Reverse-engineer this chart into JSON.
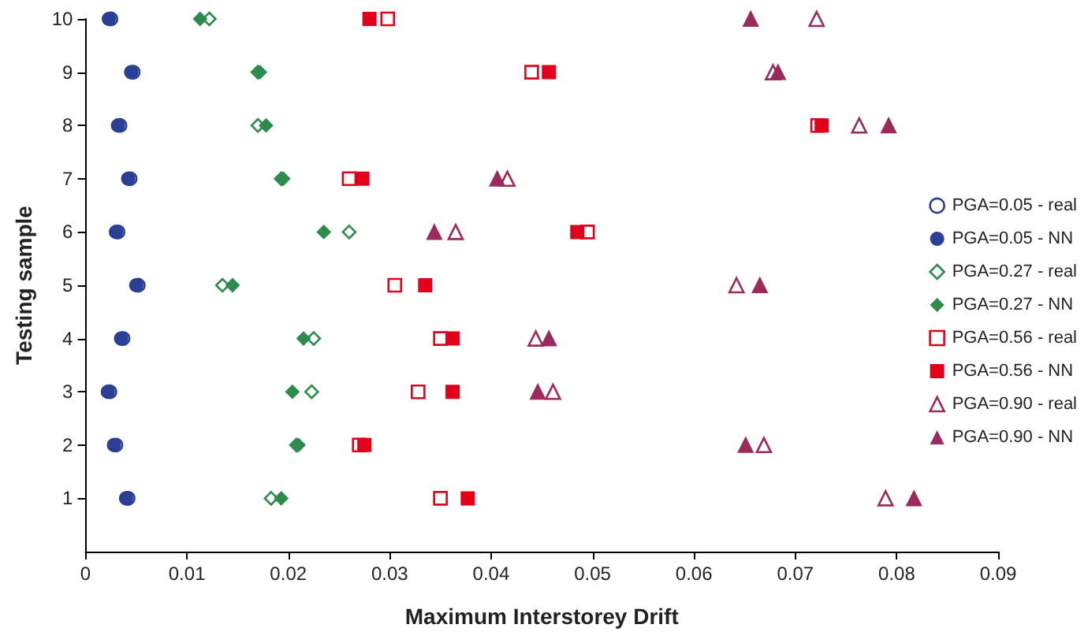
{
  "chart_data": {
    "type": "scatter",
    "xlabel": "Maximum Interstorey Drift",
    "ylabel": "Testing sample",
    "xlim": [
      0,
      0.09
    ],
    "xticks": [
      0,
      0.01,
      0.02,
      0.03,
      0.04,
      0.05,
      0.06,
      0.07,
      0.08,
      0.09
    ],
    "ylim": [
      0,
      10
    ],
    "yticks": [
      1,
      2,
      3,
      4,
      5,
      6,
      7,
      8,
      9,
      10
    ],
    "grid": false,
    "legend": "right",
    "series": [
      {
        "name": "PGA=0.05 - real",
        "color": "#2b3f94",
        "marker": "circle",
        "x": [
          0.0042,
          0.003,
          0.0024,
          0.0037,
          0.0052,
          0.0032,
          0.0044,
          0.0034,
          0.0047,
          0.0025
        ],
        "values": [
          1,
          2,
          3,
          4,
          5,
          6,
          7,
          8,
          9,
          10
        ]
      },
      {
        "name": "PGA=0.05 - NN",
        "color": "#2b3f94",
        "marker": "circle",
        "x": [
          0.004,
          0.0028,
          0.0022,
          0.0035,
          0.005,
          0.003,
          0.0042,
          0.0032,
          0.0045,
          0.0023
        ],
        "values": [
          1,
          2,
          3,
          4,
          5,
          6,
          7,
          8,
          9,
          10
        ]
      },
      {
        "name": "PGA=0.27 - real",
        "color": "#2e8b4e",
        "marker": "diamond",
        "x": [
          0.0183,
          0.0208,
          0.0223,
          0.0225,
          0.0135,
          0.026,
          0.0193,
          0.017,
          0.017,
          0.0122
        ],
        "values": [
          1,
          2,
          3,
          4,
          5,
          6,
          7,
          8,
          9,
          10
        ]
      },
      {
        "name": "PGA=0.27 - NN",
        "color": "#2e8b4e",
        "marker": "diamond",
        "x": [
          0.0193,
          0.021,
          0.0204,
          0.0215,
          0.0145,
          0.0235,
          0.0195,
          0.0178,
          0.0172,
          0.0113
        ],
        "values": [
          1,
          2,
          3,
          4,
          5,
          6,
          7,
          8,
          9,
          10
        ]
      },
      {
        "name": "PGA=0.56 - real",
        "color": "#e3001b",
        "marker": "square",
        "x": [
          0.035,
          0.027,
          0.0328,
          0.035,
          0.0305,
          0.0495,
          0.026,
          0.0722,
          0.044,
          0.0298
        ],
        "values": [
          1,
          2,
          3,
          4,
          5,
          6,
          7,
          8,
          9,
          10
        ]
      },
      {
        "name": "PGA=0.56 - NN",
        "color": "#e3001b",
        "marker": "square",
        "x": [
          0.0377,
          0.0275,
          0.0362,
          0.0362,
          0.0335,
          0.0485,
          0.0273,
          0.0726,
          0.0457,
          0.028
        ],
        "values": [
          1,
          2,
          3,
          4,
          5,
          6,
          7,
          8,
          9,
          10
        ]
      },
      {
        "name": "PGA=0.90 - real",
        "color": "#9b2a5e",
        "marker": "triangle",
        "x": [
          0.0789,
          0.0669,
          0.0461,
          0.0444,
          0.0642,
          0.0365,
          0.0416,
          0.0763,
          0.0678,
          0.0721
        ],
        "values": [
          1,
          2,
          3,
          4,
          5,
          6,
          7,
          8,
          9,
          10
        ]
      },
      {
        "name": "PGA=0.90 - NN",
        "color": "#9b2a5e",
        "marker": "triangle",
        "x": [
          0.0817,
          0.0651,
          0.0446,
          0.0457,
          0.0665,
          0.0344,
          0.0406,
          0.0792,
          0.0683,
          0.0656
        ],
        "values": [
          1,
          2,
          3,
          4,
          5,
          6,
          7,
          8,
          9,
          10
        ]
      }
    ]
  }
}
